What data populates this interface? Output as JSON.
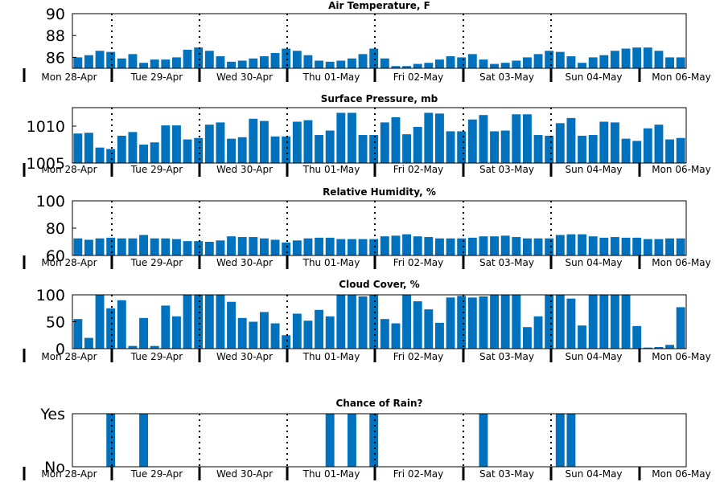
{
  "bar_color": "#0072bd",
  "day_labels": [
    "Mon 28-Apr",
    "Tue 29-Apr",
    "Wed 30-Apr",
    "Thu 01-May",
    "Fri 02-May",
    "Sat 03-May",
    "Sun 04-May",
    "Mon 06-May"
  ],
  "chart_data": [
    {
      "type": "bar",
      "title": "Air Temperature, F",
      "ylim": [
        85,
        90
      ],
      "yticks": [
        86,
        88,
        90
      ],
      "yticklabels": [
        "86",
        "88",
        "90"
      ],
      "values": [
        86.0,
        86.2,
        86.6,
        86.5,
        85.9,
        86.3,
        85.5,
        85.8,
        85.8,
        86.0,
        86.7,
        86.9,
        86.6,
        86.1,
        85.6,
        85.7,
        85.9,
        86.1,
        86.4,
        86.8,
        86.6,
        86.2,
        85.7,
        85.6,
        85.7,
        85.9,
        86.3,
        86.8,
        85.9,
        85.2,
        85.2,
        85.4,
        85.5,
        85.8,
        86.1,
        86.0,
        86.3,
        85.8,
        85.4,
        85.5,
        85.7,
        86.0,
        86.3,
        86.6,
        86.5,
        86.1,
        85.5,
        86.0,
        86.2,
        86.6,
        86.8,
        86.9,
        86.9,
        86.6,
        86.0,
        86.0
      ]
    },
    {
      "type": "bar",
      "title": "Surface Pressure, mb",
      "ylim": [
        1005,
        1012.5
      ],
      "yticks": [
        1005,
        1010
      ],
      "yticklabels": [
        "1005",
        "1010"
      ],
      "values": [
        1009.0,
        1009.1,
        1007.1,
        1006.9,
        1008.7,
        1009.2,
        1007.5,
        1007.8,
        1010.1,
        1010.1,
        1008.2,
        1008.4,
        1010.2,
        1010.5,
        1008.3,
        1008.5,
        1011.0,
        1010.7,
        1008.6,
        1008.6,
        1010.6,
        1010.8,
        1008.8,
        1009.4,
        1011.8,
        1011.8,
        1008.8,
        1008.8,
        1010.5,
        1011.2,
        1008.9,
        1009.9,
        1011.8,
        1011.7,
        1009.3,
        1009.3,
        1010.9,
        1011.5,
        1009.3,
        1009.4,
        1011.6,
        1011.6,
        1008.8,
        1008.7,
        1010.4,
        1011.1,
        1008.7,
        1008.8,
        1010.6,
        1010.5,
        1008.3,
        1008.0,
        1009.7,
        1010.2,
        1008.2,
        1008.4
      ]
    },
    {
      "type": "bar",
      "title": "Relative Humidity, %",
      "ylim": [
        60,
        100
      ],
      "yticks": [
        60,
        80,
        100
      ],
      "yticklabels": [
        "60",
        "80",
        "100"
      ],
      "values": [
        72.5,
        71.5,
        72.5,
        73.0,
        72.5,
        72.5,
        75.0,
        72.5,
        72.5,
        72.0,
        70.5,
        70.5,
        70.0,
        71.0,
        74.0,
        73.5,
        73.5,
        72.5,
        71.5,
        69.5,
        71.0,
        72.5,
        73.0,
        73.0,
        72.0,
        72.0,
        72.0,
        72.0,
        74.0,
        74.5,
        75.5,
        74.0,
        73.5,
        72.5,
        72.5,
        72.5,
        73.0,
        74.0,
        74.0,
        74.5,
        73.5,
        72.5,
        72.5,
        72.5,
        75.0,
        75.5,
        75.5,
        74.0,
        73.0,
        73.5,
        73.0,
        73.0,
        72.0,
        72.0,
        72.5,
        72.5
      ]
    },
    {
      "type": "bar",
      "title": "Cloud Cover, %",
      "ylim": [
        0,
        100
      ],
      "yticks": [
        0,
        50,
        100
      ],
      "yticklabels": [
        "0",
        "50",
        "100"
      ],
      "values": [
        55,
        20,
        100,
        75,
        90,
        5,
        57,
        5,
        80,
        60,
        100,
        100,
        100,
        100,
        87,
        57,
        50,
        68,
        47,
        25,
        65,
        52,
        72,
        60,
        100,
        100,
        97,
        100,
        55,
        47,
        100,
        88,
        73,
        48,
        95,
        98,
        95,
        97,
        100,
        100,
        100,
        40,
        60,
        100,
        100,
        93,
        43,
        100,
        100,
        100,
        100,
        42,
        2,
        3,
        7,
        77
      ]
    },
    {
      "type": "bar",
      "title": "Chance of Rain?",
      "ylim": [
        0,
        1
      ],
      "yticks": [
        0,
        1
      ],
      "yticklabels": [
        "No",
        "Yes"
      ],
      "values": [
        0,
        0,
        0,
        1,
        0,
        0,
        1,
        0,
        0,
        0,
        0,
        0,
        0,
        0,
        0,
        0,
        0,
        0,
        0,
        0,
        0,
        0,
        0,
        1,
        0,
        1,
        0,
        1,
        0,
        0,
        0,
        0,
        0,
        0,
        0,
        0,
        0,
        1,
        0,
        0,
        0,
        0,
        0,
        0,
        1,
        1,
        0,
        0,
        0,
        0,
        0,
        0,
        0,
        0,
        0,
        0
      ]
    }
  ]
}
